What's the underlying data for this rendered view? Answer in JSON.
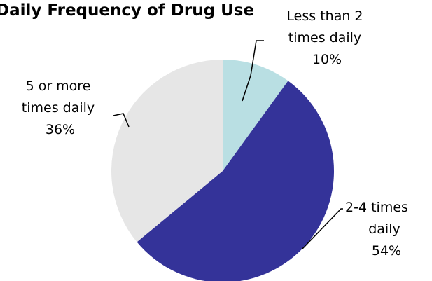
{
  "chart_data": {
    "type": "pie",
    "title": "Daily Frequency of Drug Use",
    "categories": [
      "Less than 2 times daily",
      "2-4 times daily",
      "5 or more times daily"
    ],
    "values": [
      10,
      54,
      36
    ],
    "labels": [
      {
        "lines": [
          "Less than 2",
          "times daily"
        ],
        "percent": "10%"
      },
      {
        "lines": [
          "2-4 times",
          "daily"
        ],
        "percent": "54%"
      },
      {
        "lines": [
          "5 or more",
          "times daily"
        ],
        "percent": "36%"
      }
    ],
    "colors": [
      "#b9dfe3",
      "#343399",
      "#e6e6e6"
    ],
    "start_angle": "12 o'clock",
    "direction": "clockwise",
    "legend": "none"
  }
}
